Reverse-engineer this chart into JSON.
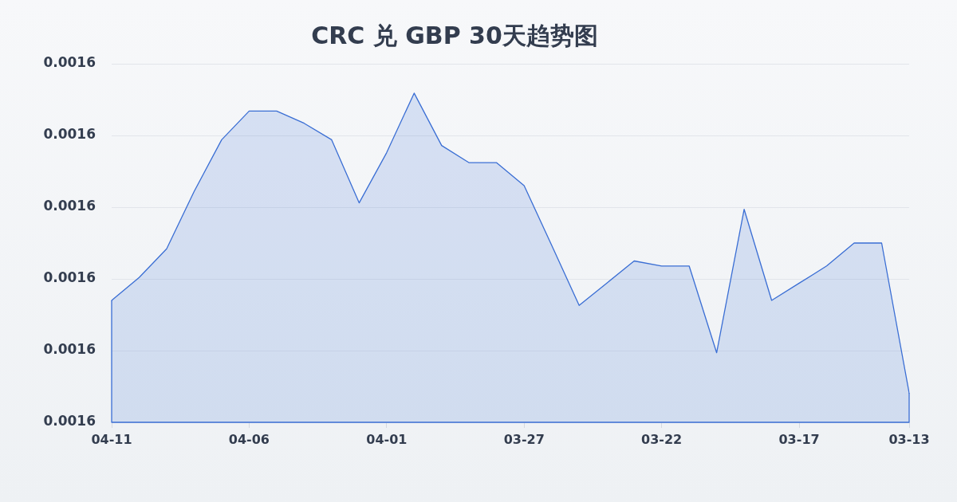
{
  "chart_data": {
    "type": "area",
    "title": "CRC 兑 GBP 30天趋势图",
    "categories": [
      "04-11",
      null,
      null,
      null,
      null,
      "04-06",
      null,
      null,
      null,
      null,
      "04-01",
      null,
      null,
      null,
      null,
      "03-27",
      null,
      null,
      null,
      null,
      "03-22",
      null,
      null,
      null,
      null,
      "03-17",
      null,
      null,
      null,
      "03-13"
    ],
    "series": [
      {
        "color": "#3a6ed4",
        "values": [
          0.001577,
          0.0015802,
          0.0015842,
          0.0015922,
          0.0015994,
          0.0016034,
          0.0016034,
          0.0016017,
          0.0015994,
          0.0015906,
          0.0015976,
          0.0016059,
          0.0015986,
          0.0015962,
          0.0015962,
          0.001593,
          0.0015847,
          0.0015763,
          0.0015794,
          0.0015825,
          0.0015818,
          0.0015818,
          0.0015697,
          0.0015897,
          0.001577,
          0.0015794,
          0.0015818,
          0.001585,
          0.001585,
          0.0015641
        ]
      }
    ],
    "ylim": [
      0.00156,
      0.00161
    ],
    "yticks": [
      {
        "value": 0.00156,
        "label": "0.0016"
      },
      {
        "value": 0.00157,
        "label": "0.0016"
      },
      {
        "value": 0.00158,
        "label": "0.0016"
      },
      {
        "value": 0.00159,
        "label": "0.0016"
      },
      {
        "value": 0.0016,
        "label": "0.0016"
      },
      {
        "value": 0.00161,
        "label": "0.0016"
      }
    ],
    "grid": "y",
    "marker": "none"
  }
}
